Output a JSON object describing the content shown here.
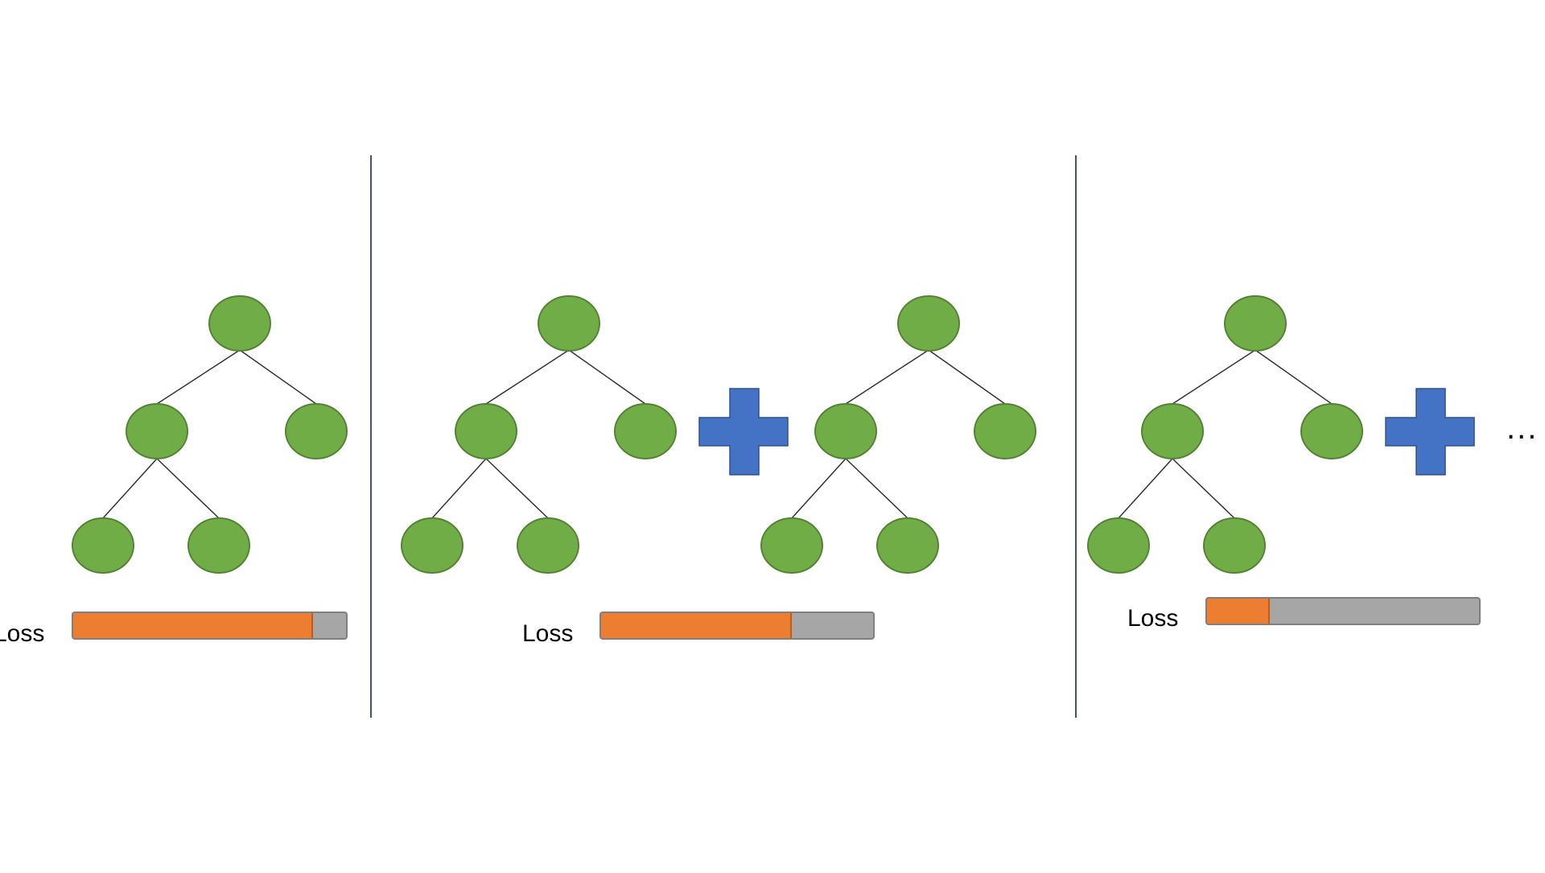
{
  "panels": [
    {
      "trees": 1,
      "plus": false,
      "loss": {
        "label": "Loss",
        "fill_fraction": 0.88
      }
    },
    {
      "trees": 2,
      "plus": true,
      "loss": {
        "label": "Loss",
        "fill_fraction": 0.7
      }
    },
    {
      "trees": 1,
      "plus": true,
      "loss": {
        "label": "Loss",
        "fill_fraction": 0.23
      },
      "continuation": "..."
    }
  ],
  "colors": {
    "node": "#70ad47",
    "plus": "#4472c4",
    "loss_fill": "#ed7d31",
    "loss_track": "#a6a6a6",
    "divider": "#44546a"
  }
}
